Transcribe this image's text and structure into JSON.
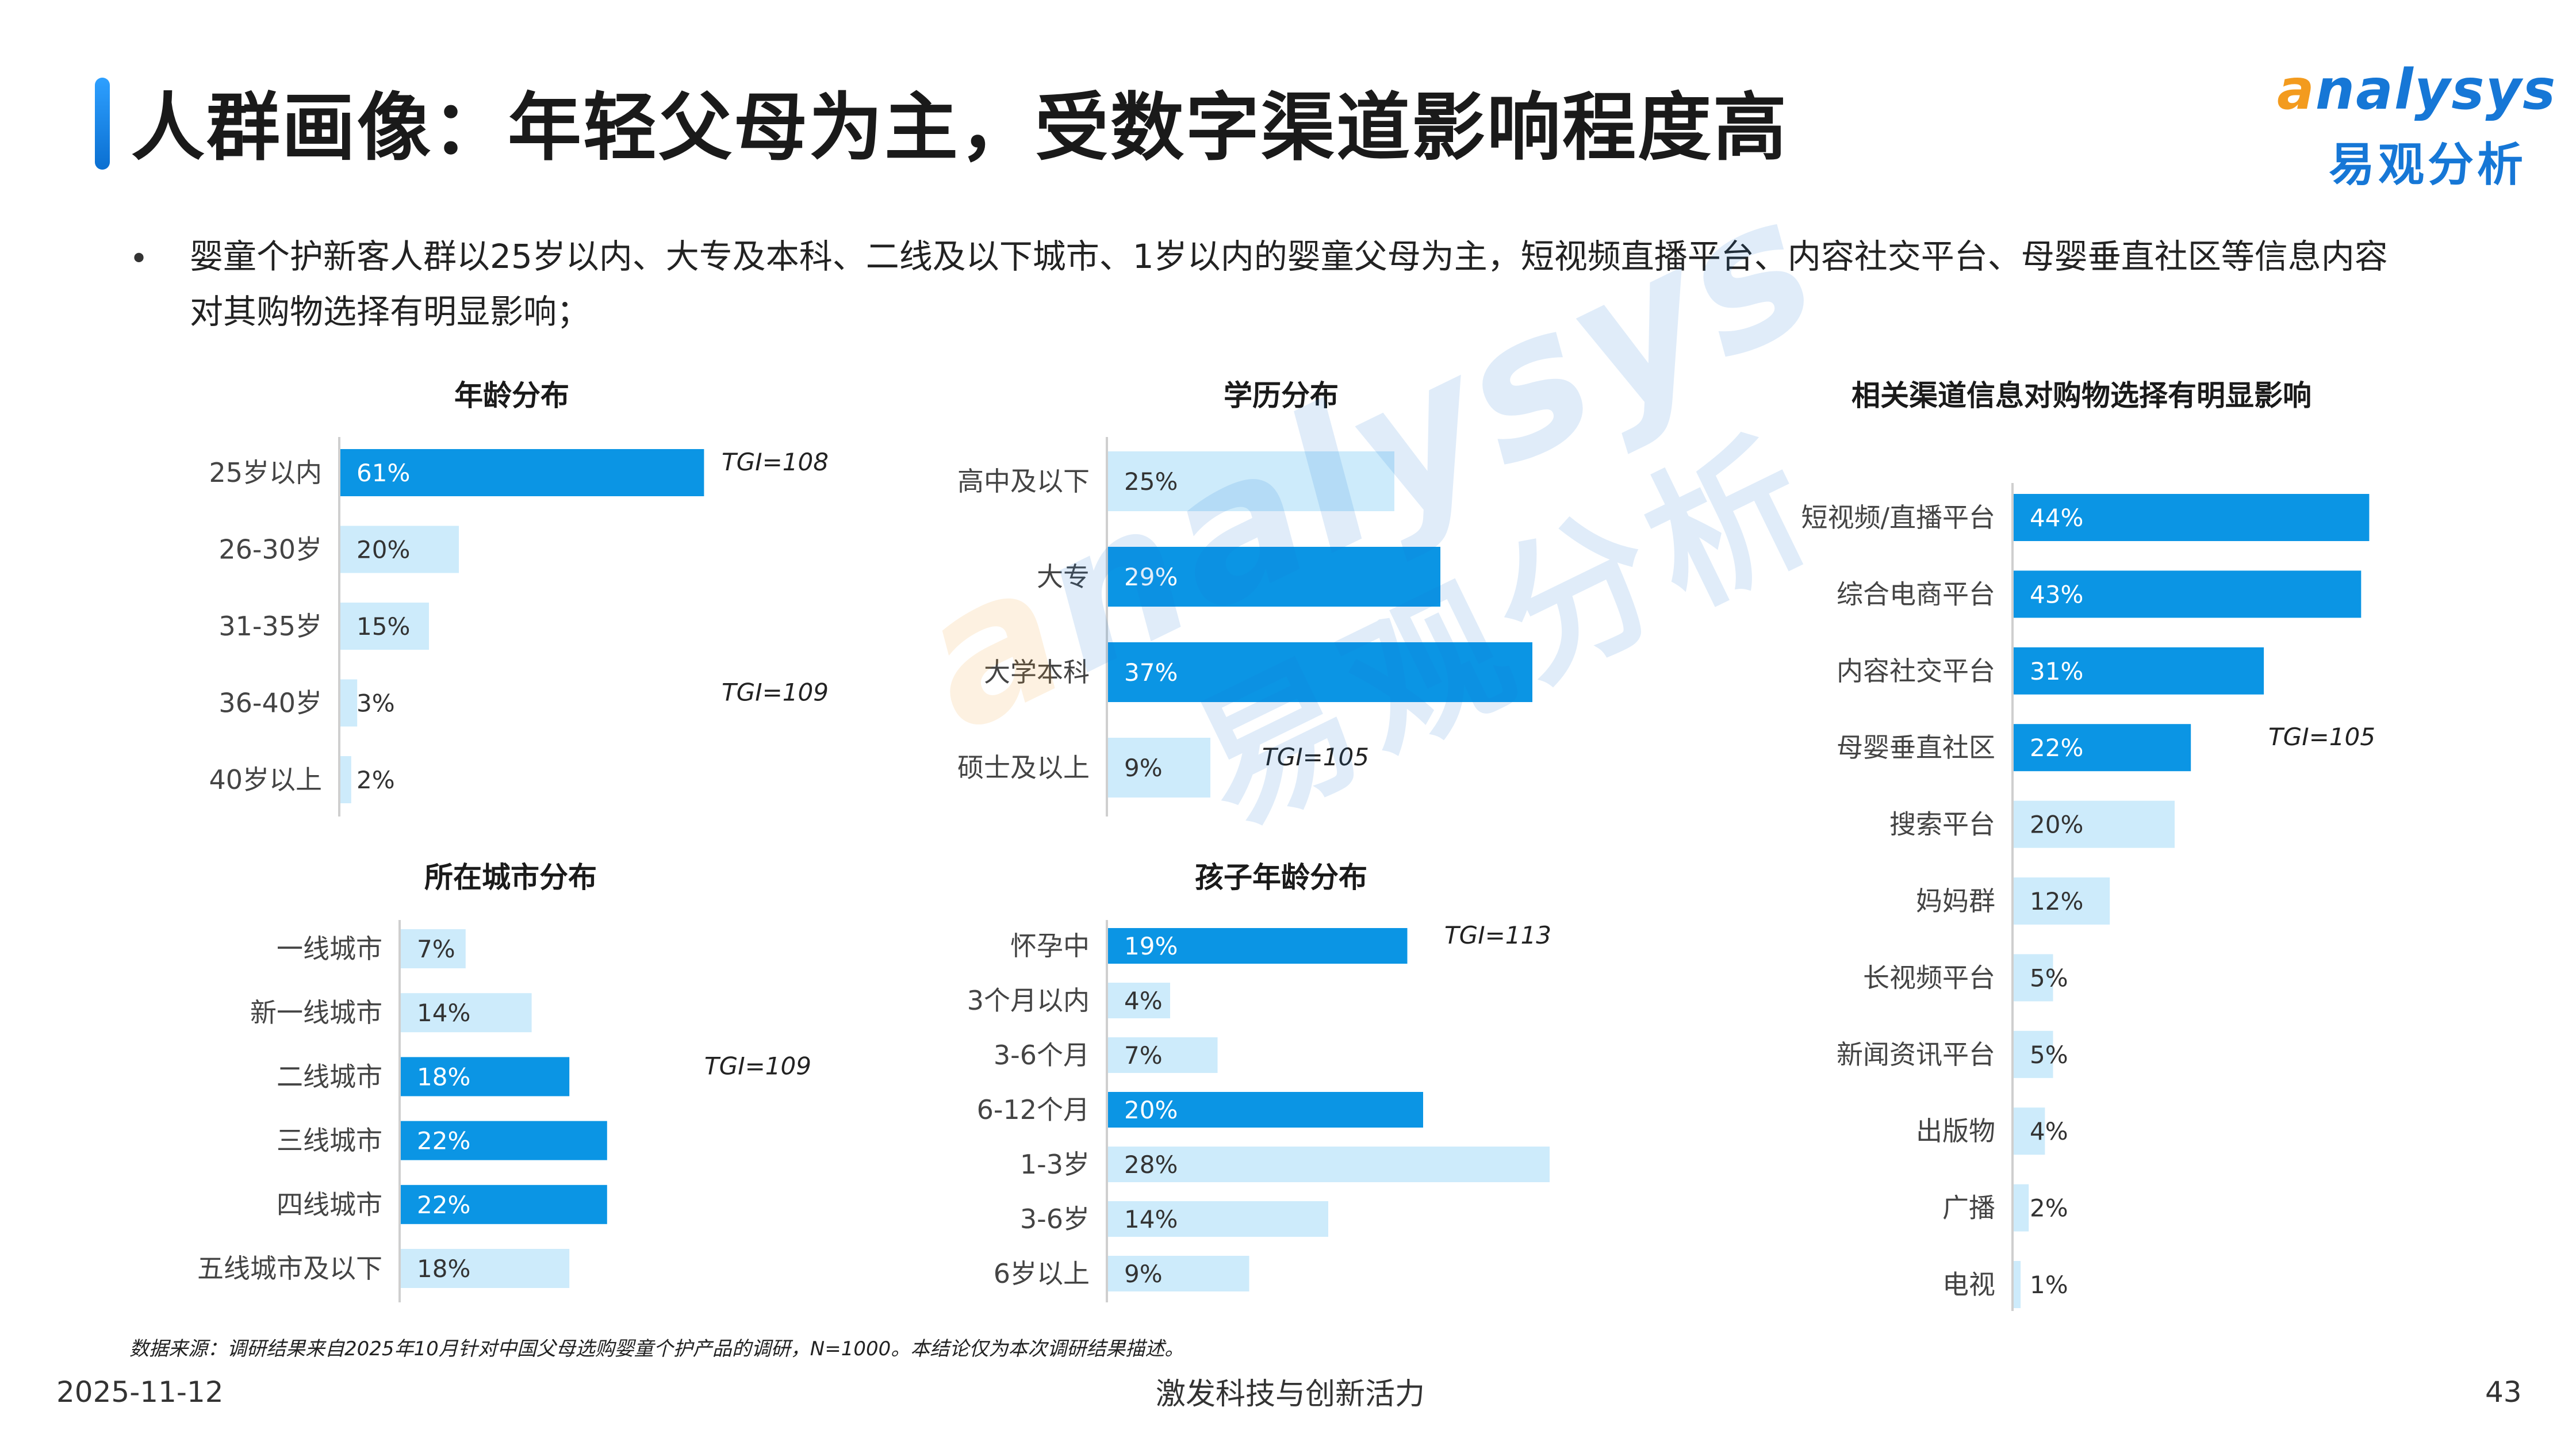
{
  "header": {
    "title": "人群画像：年轻父母为主，受数字渠道影响程度高",
    "logo_en": "nalysys",
    "logo_en_initial": "a",
    "logo_cn": "易观分析"
  },
  "bullet": "•",
  "description": "婴童个护新客人群以25岁以内、大专及本科、二线及以下城市、1岁以内的婴童父母为主，短视频直播平台、内容社交平台、母婴垂直社区等信息内容对其购物选择有明显影响；",
  "watermark": {
    "en": "nalysys",
    "en_initial": "a",
    "cn": "易观分析"
  },
  "colors": {
    "highlight": "#0b95e4",
    "normal": "#cdebfb",
    "title_accent": "#1e88e5",
    "logo_blue": "#1677d6",
    "logo_orange": "#f39b1e"
  },
  "chart_data": [
    {
      "id": "age",
      "type": "bar",
      "orientation": "horizontal",
      "title": "年龄分布",
      "categories": [
        "25岁以内",
        "26-30岁",
        "31-35岁",
        "36-40岁",
        "40岁以上"
      ],
      "values": [
        61,
        20,
        15,
        3,
        2
      ],
      "labels": [
        "61%",
        "20%",
        "15%",
        "3%",
        "2%"
      ],
      "highlight": [
        true,
        false,
        false,
        false,
        false
      ],
      "tgi": [
        {
          "index": 0,
          "text": "TGI=108"
        },
        {
          "index": 3,
          "text": "TGI=109"
        }
      ]
    },
    {
      "id": "education",
      "type": "bar",
      "orientation": "horizontal",
      "title": "学历分布",
      "categories": [
        "高中及以下",
        "大专",
        "大学本科",
        "硕士及以上"
      ],
      "values": [
        25,
        29,
        37,
        9
      ],
      "labels": [
        "25%",
        "29%",
        "37%",
        "9%"
      ],
      "highlight": [
        false,
        true,
        true,
        false
      ],
      "tgi": [
        {
          "index": 3,
          "text": "TGI=105"
        }
      ]
    },
    {
      "id": "channels",
      "type": "bar",
      "orientation": "horizontal",
      "title": "相关渠道信息对购物选择有明显影响",
      "categories": [
        "短视频/直播平台",
        "综合电商平台",
        "内容社交平台",
        "母婴垂直社区",
        "搜索平台",
        "妈妈群",
        "长视频平台",
        "新闻资讯平台",
        "出版物",
        "广播",
        "电视"
      ],
      "values": [
        44,
        43,
        31,
        22,
        20,
        12,
        5,
        5,
        4,
        2,
        1
      ],
      "labels": [
        "44%",
        "43%",
        "31%",
        "22%",
        "20%",
        "12%",
        "5%",
        "5%",
        "4%",
        "2%",
        "1%"
      ],
      "highlight": [
        true,
        true,
        true,
        true,
        false,
        false,
        false,
        false,
        false,
        false,
        false
      ],
      "tgi": [
        {
          "index": 3,
          "text": "TGI=105"
        }
      ]
    },
    {
      "id": "city",
      "type": "bar",
      "orientation": "horizontal",
      "title": "所在城市分布",
      "categories": [
        "一线城市",
        "新一线城市",
        "二线城市",
        "三线城市",
        "四线城市",
        "五线城市及以下"
      ],
      "values": [
        7,
        14,
        18,
        22,
        22,
        18
      ],
      "labels": [
        "7%",
        "14%",
        "18%",
        "22%",
        "22%",
        "18%"
      ],
      "highlight": [
        false,
        false,
        true,
        true,
        true,
        false
      ],
      "tgi": [
        {
          "index": 2,
          "text": "TGI=109"
        }
      ]
    },
    {
      "id": "child_age",
      "type": "bar",
      "orientation": "horizontal",
      "title": "孩子年龄分布",
      "categories": [
        "怀孕中",
        "3个月以内",
        "3-6个月",
        "6-12个月",
        "1-3岁",
        "3-6岁",
        "6岁以上"
      ],
      "values": [
        19,
        4,
        7,
        20,
        28,
        14,
        9
      ],
      "labels": [
        "19%",
        "4%",
        "7%",
        "20%",
        "28%",
        "14%",
        "9%"
      ],
      "highlight": [
        true,
        false,
        false,
        true,
        false,
        false,
        false
      ],
      "tgi": [
        {
          "index": 0,
          "text": "TGI=113"
        }
      ]
    }
  ],
  "footer": {
    "source": "数据来源：调研结果来自2025年10月针对中国父母选购婴童个护产品的调研，N=1000。本结论仅为本次调研结果描述。",
    "date": "2025-11-12",
    "slogan": "激发科技与创新活力",
    "page": "43"
  }
}
